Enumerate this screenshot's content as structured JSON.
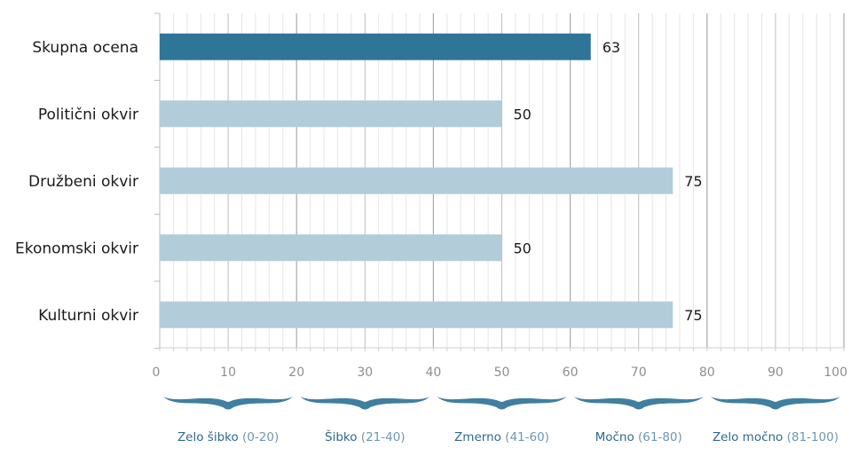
{
  "chart_data": {
    "type": "bar",
    "orientation": "horizontal",
    "categories": [
      "Skupna ocena",
      "Politični okvir",
      "Družbeni okvir",
      "Ekonomski okvir",
      "Kulturni okvir"
    ],
    "values": [
      63,
      50,
      75,
      50,
      75
    ],
    "value_labels": [
      "63",
      "50",
      "75",
      "50",
      "75"
    ],
    "title": "",
    "xlabel": "",
    "ylabel": "",
    "xlim": [
      0,
      100
    ],
    "x_ticks": [
      "0",
      "10",
      "20",
      "30",
      "40",
      "50",
      "60",
      "70",
      "80",
      "90",
      "100"
    ],
    "grid": true,
    "colors": {
      "highlight": "#2f7597",
      "bar": "#b3ccda",
      "grid_major": "#bdbdbd",
      "grid_minor": "#e6e6e6",
      "band_text": "#2e6a8f",
      "band_range": "#6f97b4",
      "brace": "#3f7fa1"
    },
    "bands": [
      {
        "name": "Zelo šibko",
        "range": "(0-20)",
        "from": 0,
        "to": 20
      },
      {
        "name": "Šibko",
        "range": "(21-40)",
        "from": 20,
        "to": 40
      },
      {
        "name": "Zmerno",
        "range": "(41-60)",
        "from": 40,
        "to": 60
      },
      {
        "name": "Močno",
        "range": "(61-80)",
        "from": 60,
        "to": 80
      },
      {
        "name": "Zelo močno",
        "range": "(81-100)",
        "from": 80,
        "to": 100
      }
    ]
  }
}
